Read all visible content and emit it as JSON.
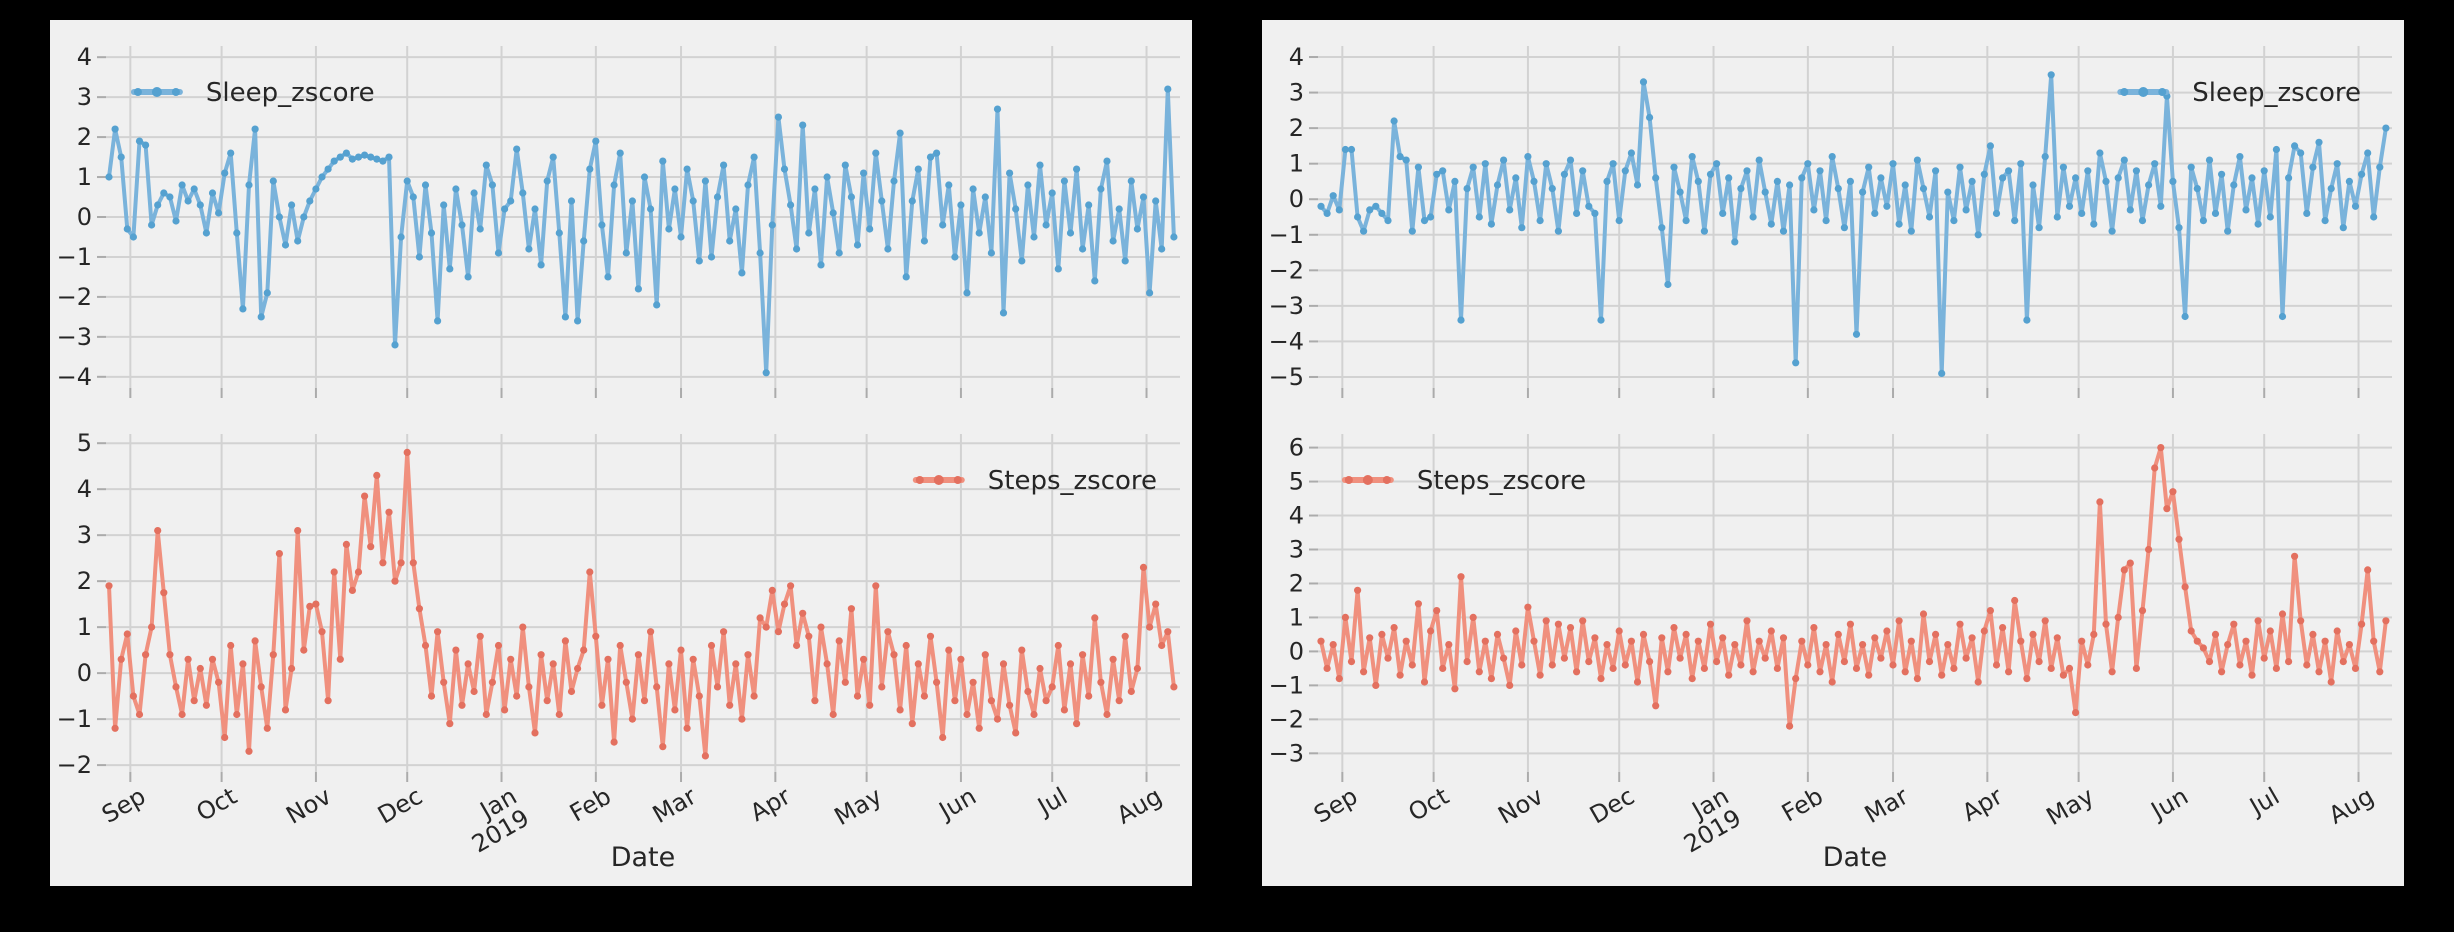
{
  "page": {
    "background": "#000000",
    "figure_background": "#f0f0f0",
    "grid_color": "#d2d2d2",
    "tick_stub_color": "#ababab",
    "text_color": "#262626"
  },
  "chart_data": [
    {
      "id": "left",
      "type": "line",
      "xlabel": "Date",
      "x_tick_labels": [
        "Sep",
        "Oct",
        "Nov",
        "Dec",
        "Jan|2019",
        "Feb",
        "Mar",
        "Apr",
        "May",
        "Jun",
        "Jul",
        "Aug"
      ],
      "x_tick_days": [
        0,
        30,
        61,
        91,
        122,
        153,
        181,
        212,
        242,
        273,
        303,
        334
      ],
      "x_domain": [
        -8,
        345
      ],
      "x_start_day": -7,
      "x_step_days": 2,
      "grid": true,
      "subplots": [
        {
          "series": "Sleep_zscore",
          "legend": "Sleep_zscore",
          "legend_position": "upper left",
          "legend_x_frac": 0.026,
          "line_color": "#7ab3db",
          "marker_color": "#55a1d0",
          "yticks": [
            4,
            3,
            2,
            1,
            0,
            -1,
            -2,
            -3,
            -4
          ],
          "ytick_labels": [
            "4",
            "3",
            "2",
            "1",
            "0",
            "−1",
            "−2",
            "−3",
            "−4"
          ],
          "ylim": [
            -4.28,
            4.28
          ],
          "values": [
            1.0,
            2.2,
            1.5,
            -0.3,
            -0.5,
            1.9,
            1.8,
            -0.2,
            0.3,
            0.6,
            0.5,
            -0.1,
            0.8,
            0.4,
            0.7,
            0.3,
            -0.4,
            0.6,
            0.1,
            1.1,
            1.6,
            -0.4,
            -2.3,
            0.8,
            2.2,
            -2.5,
            -1.9,
            0.9,
            0.0,
            -0.7,
            0.3,
            -0.6,
            0.0,
            0.4,
            0.7,
            1.0,
            1.2,
            1.4,
            1.5,
            1.6,
            1.45,
            1.5,
            1.55,
            1.5,
            1.45,
            1.4,
            1.5,
            -3.2,
            -0.5,
            0.9,
            0.5,
            -1.0,
            0.8,
            -0.4,
            -2.6,
            0.3,
            -1.3,
            0.7,
            -0.2,
            -1.5,
            0.6,
            -0.3,
            1.3,
            0.8,
            -0.9,
            0.2,
            0.4,
            1.7,
            0.6,
            -0.8,
            0.2,
            -1.2,
            0.9,
            1.5,
            -0.4,
            -2.5,
            0.4,
            -2.6,
            -0.6,
            1.2,
            1.9,
            -0.2,
            -1.5,
            0.8,
            1.6,
            -0.9,
            0.4,
            -1.8,
            1.0,
            0.2,
            -2.2,
            1.4,
            -0.3,
            0.7,
            -0.5,
            1.2,
            0.4,
            -1.1,
            0.9,
            -1.0,
            0.5,
            1.3,
            -0.6,
            0.2,
            -1.4,
            0.8,
            1.5,
            -0.9,
            -3.9,
            -0.2,
            2.5,
            1.2,
            0.3,
            -0.8,
            2.3,
            -0.4,
            0.7,
            -1.2,
            1.0,
            0.1,
            -0.9,
            1.3,
            0.5,
            -0.7,
            1.1,
            -0.3,
            1.6,
            0.4,
            -0.8,
            0.9,
            2.1,
            -1.5,
            0.4,
            1.2,
            -0.6,
            1.5,
            1.6,
            -0.2,
            0.8,
            -1.0,
            0.3,
            -1.9,
            0.7,
            -0.4,
            0.5,
            -0.9,
            2.7,
            -2.4,
            1.1,
            0.2,
            -1.1,
            0.8,
            -0.5,
            1.3,
            -0.2,
            0.6,
            -1.3,
            0.9,
            -0.4,
            1.2,
            -0.8,
            0.3,
            -1.6,
            0.7,
            1.4,
            -0.6,
            0.2,
            -1.1,
            0.9,
            -0.3,
            0.5,
            -1.9,
            0.4,
            -0.8,
            3.2,
            -0.5
          ]
        },
        {
          "series": "Steps_zscore",
          "legend": "Steps_zscore",
          "legend_position": "upper right",
          "legend_x_frac": 0.754,
          "line_color": "#f0907e",
          "marker_color": "#e3705f",
          "yticks": [
            5,
            4,
            3,
            2,
            1,
            0,
            -1,
            -2
          ],
          "ytick_labels": [
            "5",
            "4",
            "3",
            "2",
            "1",
            "0",
            "−1",
            "−2"
          ],
          "ylim": [
            -2.15,
            5.2
          ],
          "values": [
            1.9,
            -1.2,
            0.3,
            0.85,
            -0.5,
            -0.9,
            0.4,
            1.0,
            3.1,
            1.75,
            0.4,
            -0.3,
            -0.9,
            0.3,
            -0.6,
            0.1,
            -0.7,
            0.3,
            -0.2,
            -1.4,
            0.6,
            -0.9,
            0.2,
            -1.7,
            0.7,
            -0.3,
            -1.2,
            0.4,
            2.6,
            -0.8,
            0.1,
            3.1,
            0.5,
            1.45,
            1.5,
            0.9,
            -0.6,
            2.2,
            0.3,
            2.8,
            1.8,
            2.2,
            3.85,
            2.75,
            4.3,
            2.4,
            3.5,
            2.0,
            2.4,
            4.8,
            2.4,
            1.4,
            0.6,
            -0.5,
            0.9,
            -0.2,
            -1.1,
            0.5,
            -0.7,
            0.2,
            -0.4,
            0.8,
            -0.9,
            -0.2,
            0.6,
            -0.8,
            0.3,
            -0.5,
            1.0,
            -0.3,
            -1.3,
            0.4,
            -0.6,
            0.2,
            -0.9,
            0.7,
            -0.4,
            0.1,
            0.5,
            2.2,
            0.8,
            -0.7,
            0.3,
            -1.5,
            0.6,
            -0.2,
            -1.0,
            0.4,
            -0.6,
            0.9,
            -0.3,
            -1.6,
            0.2,
            -0.8,
            0.5,
            -1.2,
            0.3,
            -0.5,
            -1.8,
            0.6,
            -0.3,
            0.9,
            -0.7,
            0.2,
            -1.0,
            0.4,
            -0.5,
            1.2,
            1.0,
            1.8,
            0.9,
            1.5,
            1.9,
            0.6,
            1.3,
            0.8,
            -0.6,
            1.0,
            0.2,
            -0.9,
            0.7,
            -0.2,
            1.4,
            -0.5,
            0.3,
            -0.7,
            1.9,
            -0.3,
            0.9,
            0.4,
            -0.8,
            0.6,
            -1.1,
            0.2,
            -0.5,
            0.8,
            -0.2,
            -1.4,
            0.5,
            -0.6,
            0.3,
            -0.9,
            -0.2,
            -1.2,
            0.4,
            -0.6,
            -1.0,
            0.2,
            -0.7,
            -1.3,
            0.5,
            -0.4,
            -0.9,
            0.1,
            -0.6,
            -0.3,
            0.6,
            -0.8,
            0.2,
            -1.1,
            0.4,
            -0.5,
            1.2,
            -0.2,
            -0.9,
            0.3,
            -0.6,
            0.8,
            -0.4,
            0.1,
            2.3,
            1.0,
            1.5,
            0.6,
            0.9,
            -0.3
          ]
        }
      ]
    },
    {
      "id": "right",
      "type": "line",
      "xlabel": "Date",
      "x_tick_labels": [
        "Sep",
        "Oct",
        "Nov",
        "Dec",
        "Jan|2019",
        "Feb",
        "Mar",
        "Apr",
        "May",
        "Jun",
        "Jul",
        "Aug"
      ],
      "x_tick_days": [
        0,
        30,
        61,
        91,
        122,
        153,
        181,
        212,
        242,
        273,
        303,
        334
      ],
      "x_domain": [
        -8,
        345
      ],
      "x_start_day": -7,
      "x_step_days": 2,
      "grid": true,
      "subplots": [
        {
          "series": "Sleep_zscore",
          "legend": "Sleep_zscore",
          "legend_position": "upper right",
          "legend_x_frac": 0.747,
          "line_color": "#7ab3db",
          "marker_color": "#55a1d0",
          "yticks": [
            4,
            3,
            2,
            1,
            0,
            -1,
            -2,
            -3,
            -4,
            -5
          ],
          "ytick_labels": [
            "4",
            "3",
            "2",
            "1",
            "0",
            "−1",
            "−2",
            "−3",
            "−4",
            "−5"
          ],
          "ylim": [
            -5.31,
            4.31
          ],
          "values": [
            -0.2,
            -0.4,
            0.1,
            -0.3,
            1.4,
            1.4,
            -0.5,
            -0.9,
            -0.3,
            -0.2,
            -0.4,
            -0.6,
            2.2,
            1.2,
            1.1,
            -0.9,
            0.9,
            -0.6,
            -0.5,
            0.7,
            0.8,
            -0.3,
            0.5,
            -3.4,
            0.3,
            0.9,
            -0.5,
            1.0,
            -0.7,
            0.4,
            1.1,
            -0.3,
            0.6,
            -0.8,
            1.2,
            0.5,
            -0.6,
            1.0,
            0.3,
            -0.9,
            0.7,
            1.1,
            -0.4,
            0.8,
            -0.2,
            -0.4,
            -3.4,
            0.5,
            1.0,
            -0.6,
            0.8,
            1.3,
            0.4,
            3.3,
            2.3,
            0.6,
            -0.8,
            -2.4,
            0.9,
            0.2,
            -0.6,
            1.2,
            0.5,
            -0.9,
            0.7,
            1.0,
            -0.4,
            0.6,
            -1.2,
            0.3,
            0.8,
            -0.5,
            1.1,
            0.2,
            -0.7,
            0.5,
            -0.9,
            0.4,
            -4.6,
            0.6,
            1.0,
            -0.3,
            0.8,
            -0.6,
            1.2,
            0.3,
            -0.8,
            0.5,
            -3.8,
            0.2,
            0.9,
            -0.4,
            0.6,
            -0.2,
            1.0,
            -0.7,
            0.4,
            -0.9,
            1.1,
            0.3,
            -0.5,
            0.8,
            -4.9,
            0.2,
            -0.6,
            0.9,
            -0.3,
            0.5,
            -1.0,
            0.7,
            1.5,
            -0.4,
            0.6,
            0.8,
            -0.6,
            1.0,
            -3.4,
            0.4,
            -0.8,
            1.2,
            3.5,
            -0.5,
            0.9,
            -0.2,
            0.6,
            -0.4,
            0.8,
            -0.7,
            1.3,
            0.5,
            -0.9,
            0.6,
            1.1,
            -0.3,
            0.8,
            -0.6,
            0.4,
            1.0,
            -0.2,
            2.9,
            0.5,
            -0.8,
            -3.3,
            0.9,
            0.3,
            -0.6,
            1.1,
            -0.4,
            0.7,
            -0.9,
            0.4,
            1.2,
            -0.3,
            0.6,
            -0.7,
            0.8,
            -0.5,
            1.4,
            -3.3,
            0.6,
            1.5,
            1.3,
            -0.4,
            0.9,
            1.6,
            -0.6,
            0.3,
            1.0,
            -0.8,
            0.5,
            -0.2,
            0.7,
            1.3,
            -0.5,
            0.9,
            2.0
          ]
        },
        {
          "series": "Steps_zscore",
          "legend": "Steps_zscore",
          "legend_position": "upper left",
          "legend_x_frac": 0.025,
          "line_color": "#f0907e",
          "marker_color": "#e3705f",
          "yticks": [
            6,
            5,
            4,
            3,
            2,
            1,
            0,
            -1,
            -2,
            -3
          ],
          "ytick_labels": [
            "6",
            "5",
            "4",
            "3",
            "2",
            "1",
            "0",
            "−1",
            "−2",
            "−3"
          ],
          "ylim": [
            -3.55,
            6.4
          ],
          "values": [
            0.3,
            -0.5,
            0.2,
            -0.8,
            1.0,
            -0.3,
            1.8,
            -0.6,
            0.4,
            -1.0,
            0.5,
            -0.2,
            0.7,
            -0.7,
            0.3,
            -0.4,
            1.4,
            -0.9,
            0.6,
            1.2,
            -0.5,
            0.2,
            -1.1,
            2.2,
            -0.3,
            1.0,
            -0.6,
            0.3,
            -0.8,
            0.5,
            -0.2,
            -1.0,
            0.6,
            -0.4,
            1.3,
            0.3,
            -0.7,
            0.9,
            -0.4,
            0.8,
            -0.2,
            0.7,
            -0.6,
            0.9,
            -0.3,
            0.4,
            -0.8,
            0.2,
            -0.5,
            0.6,
            -0.4,
            0.3,
            -0.9,
            0.5,
            -0.3,
            -1.6,
            0.4,
            -0.6,
            0.7,
            -0.2,
            0.5,
            -0.8,
            0.3,
            -0.5,
            0.8,
            -0.3,
            0.4,
            -0.7,
            0.2,
            -0.4,
            0.9,
            -0.6,
            0.3,
            -0.2,
            0.6,
            -0.5,
            0.4,
            -2.2,
            -0.8,
            0.3,
            -0.4,
            0.7,
            -0.6,
            0.2,
            -0.9,
            0.5,
            -0.3,
            0.8,
            -0.5,
            0.2,
            -0.7,
            0.4,
            -0.2,
            0.6,
            -0.4,
            0.9,
            -0.6,
            0.3,
            -0.8,
            1.1,
            -0.3,
            0.5,
            -0.7,
            0.2,
            -0.5,
            0.8,
            -0.2,
            0.4,
            -0.9,
            0.6,
            1.2,
            -0.4,
            0.7,
            -0.6,
            1.5,
            0.3,
            -0.8,
            0.5,
            -0.3,
            0.9,
            -0.5,
            0.4,
            -0.7,
            -0.5,
            -1.8,
            0.3,
            -0.4,
            0.5,
            4.4,
            0.8,
            -0.6,
            1.0,
            2.4,
            2.6,
            -0.5,
            1.2,
            3.0,
            5.4,
            6.0,
            4.2,
            4.7,
            3.3,
            1.9,
            0.6,
            0.3,
            0.1,
            -0.3,
            0.5,
            -0.6,
            0.2,
            0.8,
            -0.4,
            0.3,
            -0.7,
            0.9,
            -0.2,
            0.6,
            -0.5,
            1.1,
            -0.3,
            2.8,
            0.9,
            -0.4,
            0.5,
            -0.6,
            0.3,
            -0.9,
            0.6,
            -0.3,
            0.2,
            -0.5,
            0.8,
            2.4,
            0.3,
            -0.6,
            0.9
          ]
        }
      ]
    }
  ]
}
